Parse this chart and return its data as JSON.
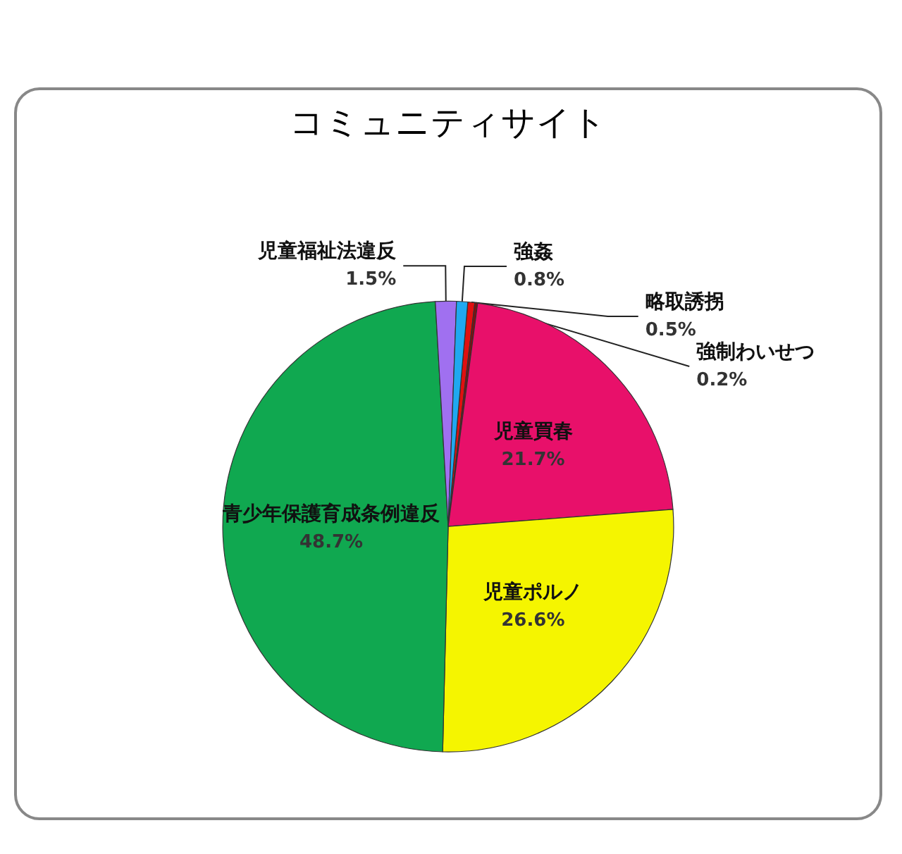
{
  "chart_data": {
    "type": "pie",
    "title": "コミュニティサイト",
    "categories": [
      "略取誘拐",
      "強制わいせつ",
      "児童買春",
      "児童ポルノ",
      "青少年保護育成条例違反",
      "児童福祉法違反",
      "強姦"
    ],
    "values": [
      0.5,
      0.2,
      21.7,
      26.6,
      48.7,
      1.5,
      0.8
    ],
    "colors": [
      "#e01010",
      "#801010",
      "#e8106a",
      "#f5f500",
      "#10a850",
      "#a070f0",
      "#20a8f0"
    ],
    "value_labels": [
      "0.5%",
      "0.2%",
      "21.7%",
      "26.6%",
      "48.7%",
      "1.5%",
      "0.8%"
    ],
    "legend": false
  }
}
